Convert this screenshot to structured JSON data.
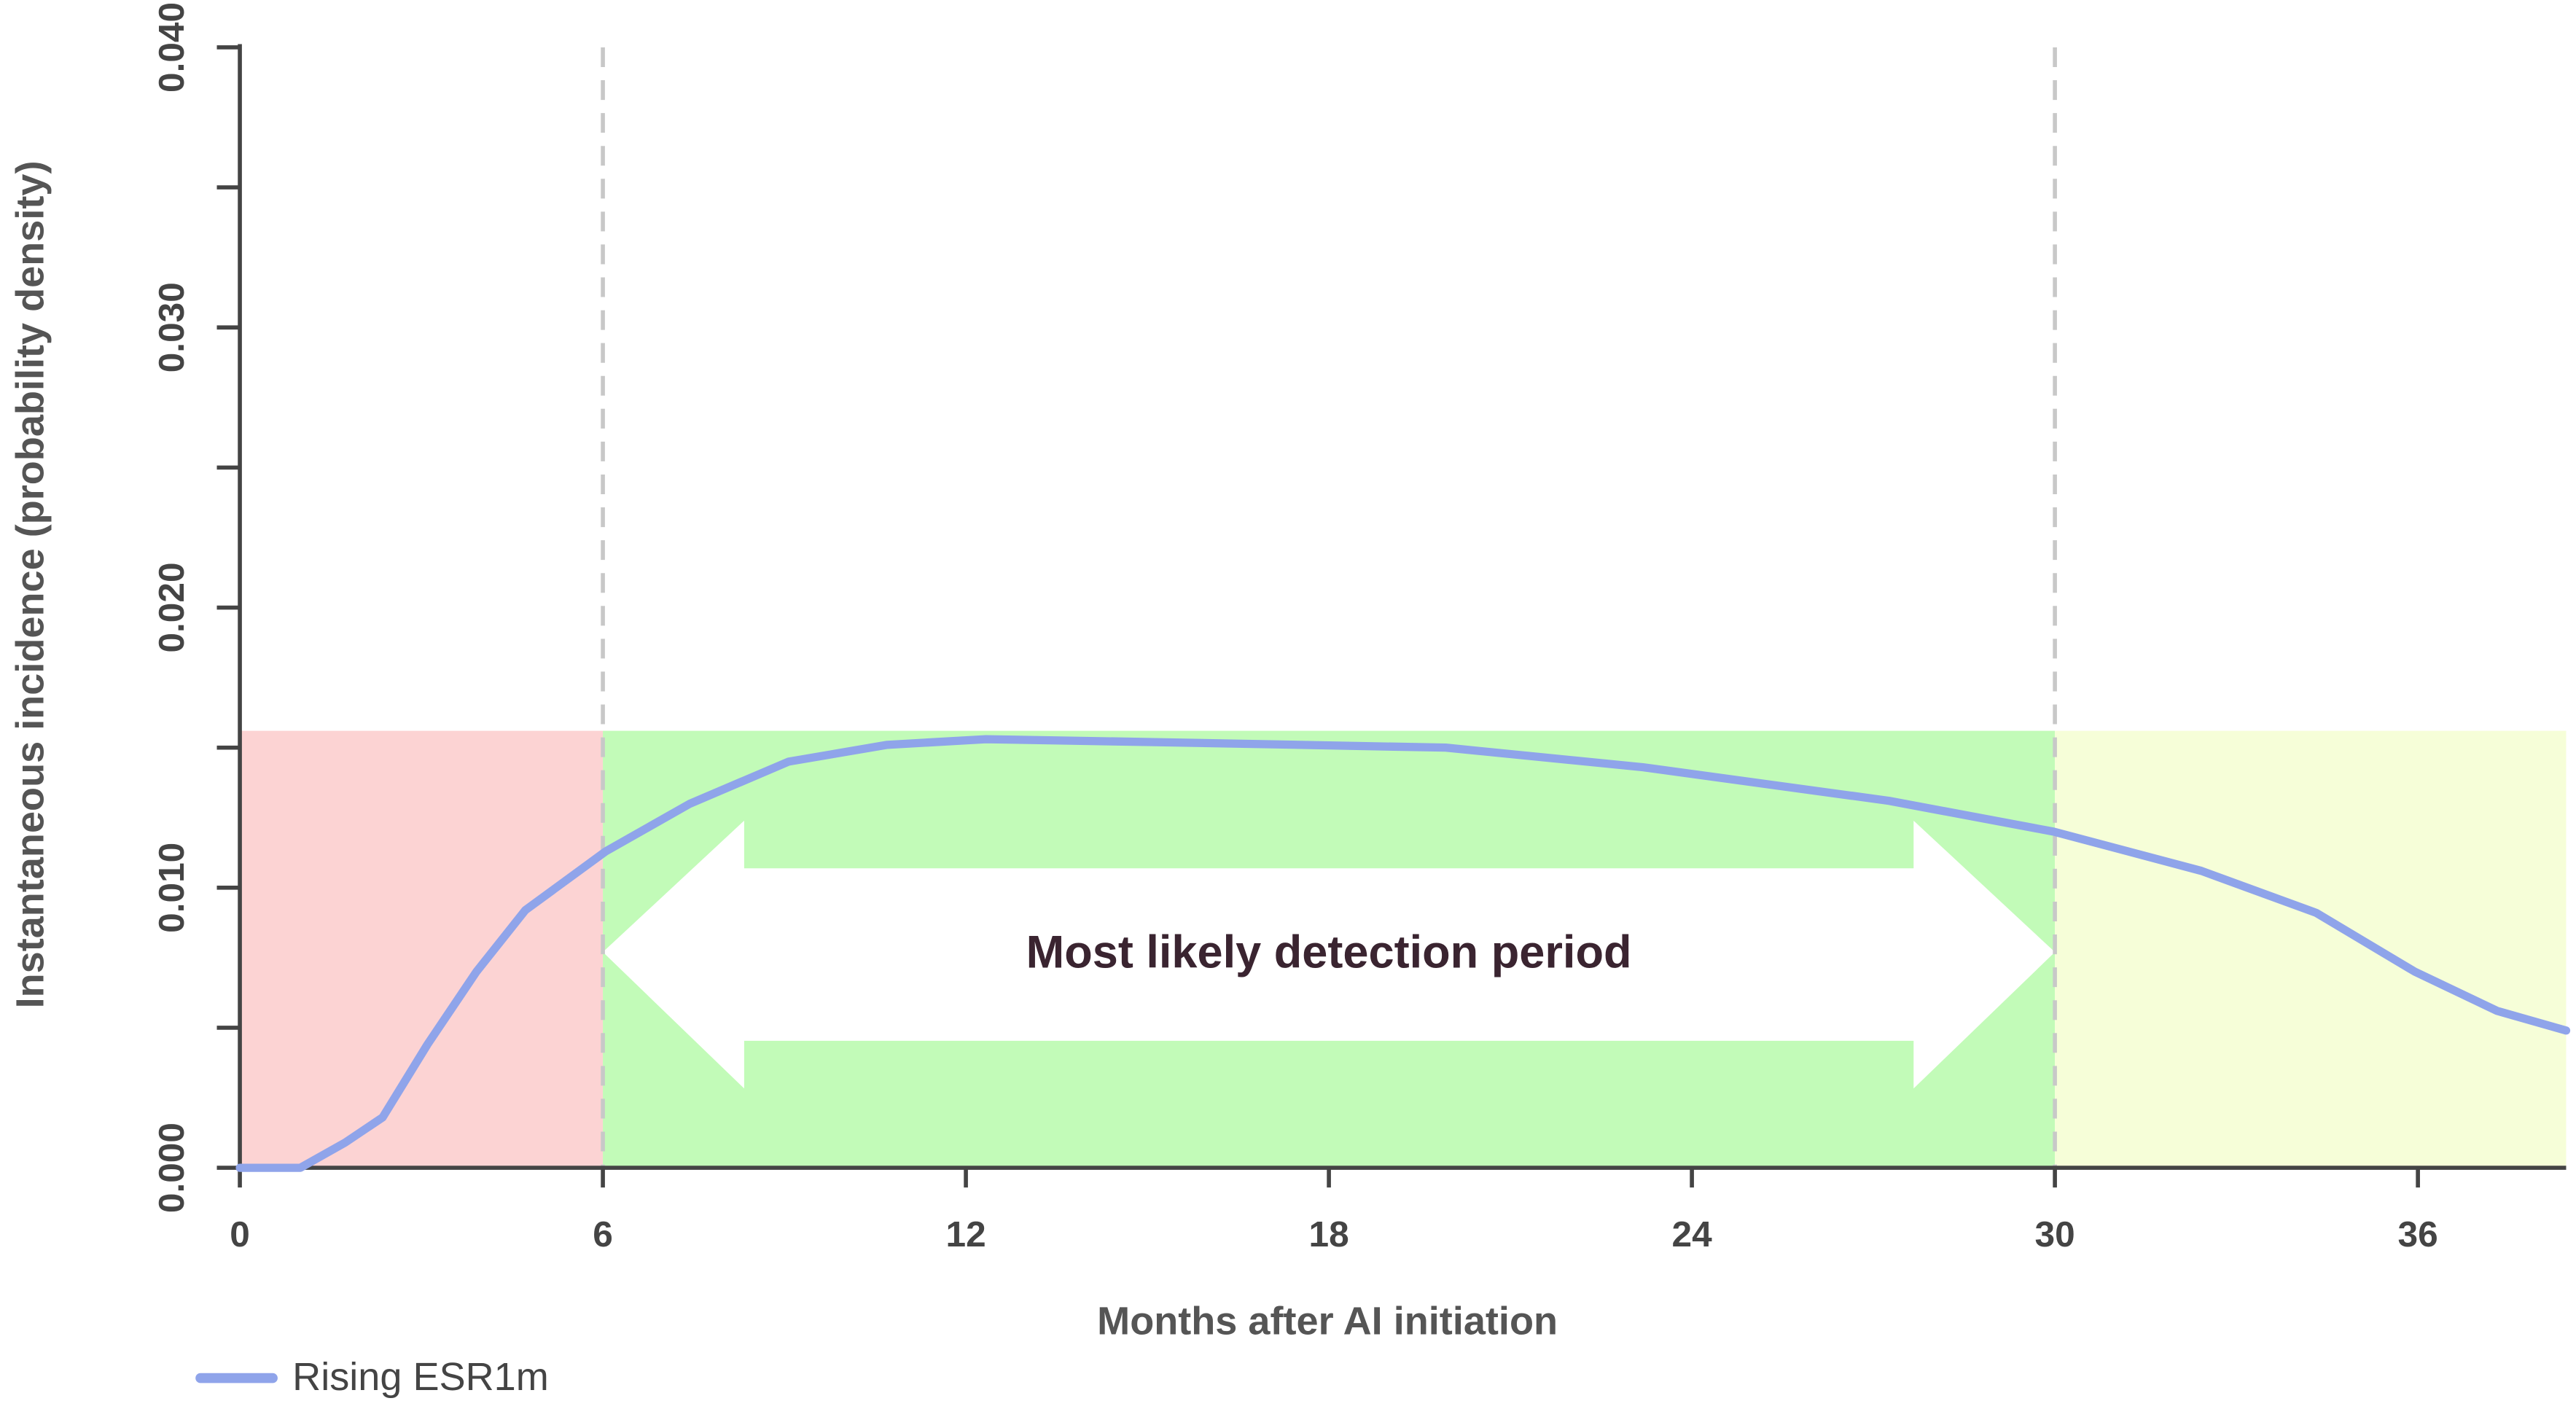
{
  "chart_data": {
    "type": "line",
    "x_label": "Months after AI initiation",
    "y_label": "Instantaneous incidence (probability density)",
    "xlim": [
      0,
      38.45
    ],
    "ylim": [
      0,
      0.04
    ],
    "xticks": [
      0,
      6,
      12,
      18,
      24,
      30,
      36
    ],
    "yticks": [
      {
        "value": 0,
        "label": "0.000"
      },
      {
        "value": 0.01,
        "label": "0.010"
      },
      {
        "value": 0.02,
        "label": "0.020"
      },
      {
        "value": 0.03,
        "label": "0.030"
      },
      {
        "value": 0.04,
        "label": "0.040"
      }
    ],
    "yminorticks": [
      0.005,
      0.015,
      0.025,
      0.035
    ],
    "regions": [
      {
        "x0": 0,
        "x1": 6,
        "color": "#fcd3d3"
      },
      {
        "x0": 6,
        "x1": 30,
        "color": "#c2fbb8"
      },
      {
        "x0": 30,
        "x1": 38.45,
        "color": "#f6fed8"
      }
    ],
    "region_top": 0.0156,
    "vlines": [
      6,
      30
    ],
    "annotation": {
      "text": "Most likely detection period",
      "x": [
        6,
        30
      ],
      "y": 0.0077
    },
    "series": [
      {
        "name": "Rising ESR1m",
        "color": "#8fa4ea",
        "x": [
          0,
          1.0,
          1.74,
          2.36,
          3.1,
          3.91,
          4.72,
          6.05,
          7.44,
          9.07,
          10.7,
          12.33,
          15.04,
          19.93,
          23.19,
          27.26,
          29.98,
          32.42,
          34.32,
          35.95,
          37.31,
          38.45
        ],
        "values": [
          0,
          0,
          0.0009,
          0.0018,
          0.0044,
          0.007,
          0.0092,
          0.0113,
          0.013,
          0.0145,
          0.0151,
          0.0153,
          0.0152,
          0.015,
          0.0143,
          0.0131,
          0.012,
          0.0106,
          0.0091,
          0.007,
          0.0056,
          0.0049
        ]
      }
    ],
    "legend": "bottom-left"
  }
}
